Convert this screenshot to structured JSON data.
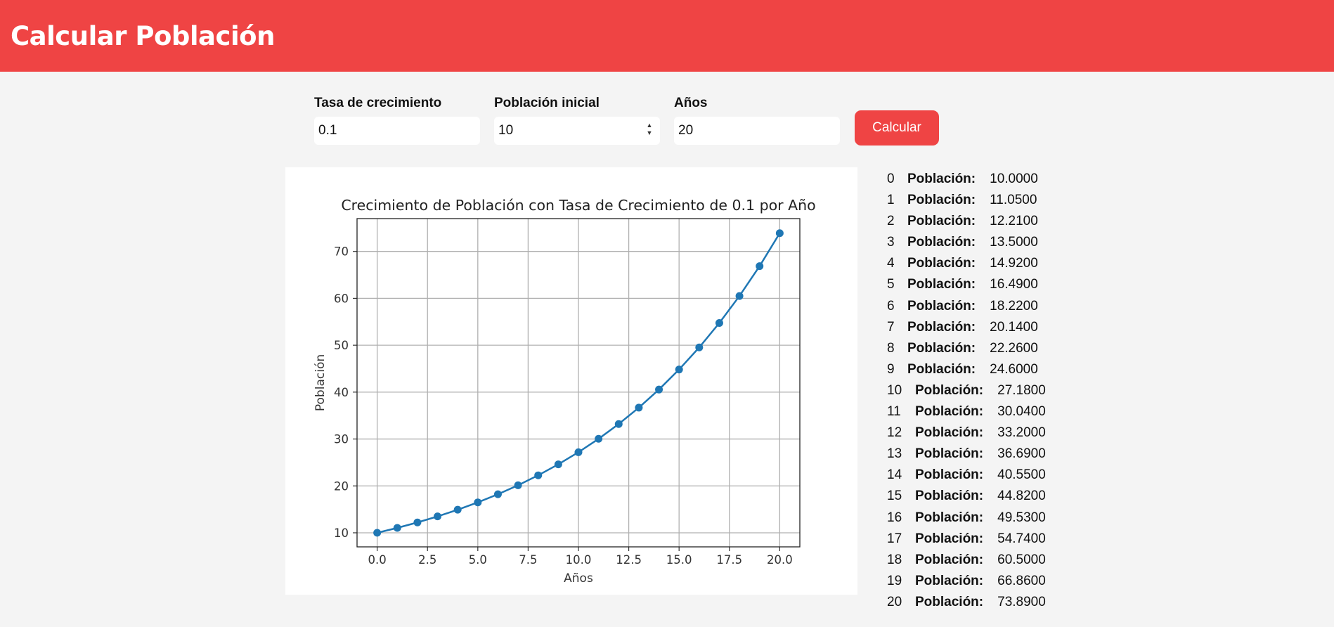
{
  "header": {
    "title": "Calcular Población"
  },
  "form": {
    "growth_rate": {
      "label": "Tasa de crecimiento",
      "value": "0.1"
    },
    "initial_population": {
      "label": "Población inicial",
      "value": "10"
    },
    "years": {
      "label": "Años",
      "value": "20"
    },
    "submit_label": "Calcular",
    "spinner_up": "▲",
    "spinner_down": "▼"
  },
  "chart_data": {
    "type": "line",
    "title": "Crecimiento de Población con Tasa de Crecimiento de 0.1 por Año",
    "xlabel": "Años",
    "ylabel": "Población",
    "x": [
      0,
      1,
      2,
      3,
      4,
      5,
      6,
      7,
      8,
      9,
      10,
      11,
      12,
      13,
      14,
      15,
      16,
      17,
      18,
      19,
      20
    ],
    "y": [
      10.0,
      11.05,
      12.21,
      13.5,
      14.92,
      16.49,
      18.22,
      20.14,
      22.26,
      24.6,
      27.18,
      30.04,
      33.2,
      36.69,
      40.55,
      44.82,
      49.53,
      54.74,
      60.5,
      66.86,
      73.89
    ],
    "xlim": [
      -1,
      21
    ],
    "ylim": [
      7,
      77
    ],
    "xticks": [
      "0.0",
      "2.5",
      "5.0",
      "7.5",
      "10.0",
      "12.5",
      "15.0",
      "17.5",
      "20.0"
    ],
    "yticks": [
      "10",
      "20",
      "30",
      "40",
      "50",
      "60",
      "70"
    ],
    "grid": true,
    "marker": "circle",
    "color": "#1f77b4"
  },
  "results": {
    "label": "Población:",
    "rows": [
      {
        "year": "0",
        "value": "10.0000"
      },
      {
        "year": "1",
        "value": "11.0500"
      },
      {
        "year": "2",
        "value": "12.2100"
      },
      {
        "year": "3",
        "value": "13.5000"
      },
      {
        "year": "4",
        "value": "14.9200"
      },
      {
        "year": "5",
        "value": "16.4900"
      },
      {
        "year": "6",
        "value": "18.2200"
      },
      {
        "year": "7",
        "value": "20.1400"
      },
      {
        "year": "8",
        "value": "22.2600"
      },
      {
        "year": "9",
        "value": "24.6000"
      },
      {
        "year": "10",
        "value": "27.1800"
      },
      {
        "year": "11",
        "value": "30.0400"
      },
      {
        "year": "12",
        "value": "33.2000"
      },
      {
        "year": "13",
        "value": "36.6900"
      },
      {
        "year": "14",
        "value": "40.5500"
      },
      {
        "year": "15",
        "value": "44.8200"
      },
      {
        "year": "16",
        "value": "49.5300"
      },
      {
        "year": "17",
        "value": "54.7400"
      },
      {
        "year": "18",
        "value": "60.5000"
      },
      {
        "year": "19",
        "value": "66.8600"
      },
      {
        "year": "20",
        "value": "73.8900"
      }
    ]
  }
}
